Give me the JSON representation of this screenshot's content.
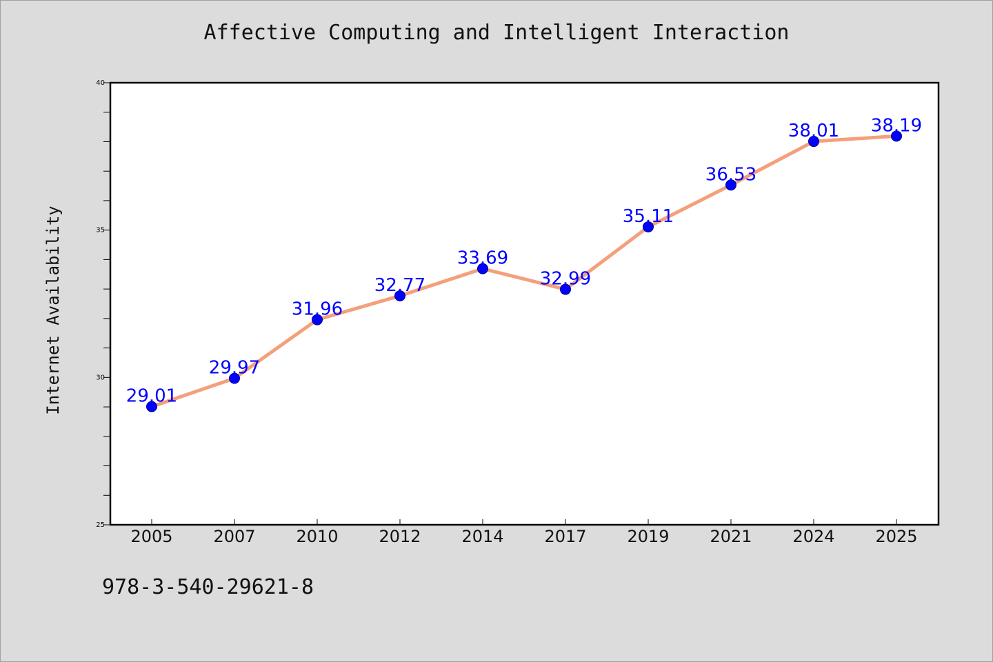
{
  "chart_data": {
    "type": "line",
    "title": "Affective Computing and Intelligent Interaction",
    "xlabel": "",
    "ylabel": "Internet Availability",
    "categories": [
      "2005",
      "2007",
      "2010",
      "2012",
      "2014",
      "2017",
      "2019",
      "2021",
      "2024",
      "2025"
    ],
    "series": [
      {
        "values": [
          29.01,
          29.97,
          31.96,
          32.77,
          33.69,
          32.99,
          35.11,
          36.53,
          38.01,
          38.19
        ],
        "labels": [
          "29.01",
          "29.97",
          "31.96",
          "32.77",
          "33.69",
          "32.99",
          "35.11",
          "36.53",
          "38.01",
          "38.19"
        ]
      }
    ],
    "ylim": [
      25,
      40
    ],
    "yticks": [
      "25",
      "30",
      "35",
      "40"
    ],
    "grid": false,
    "colors": {
      "line": "#f4a07c",
      "marker": "#0000ff",
      "label": "#0000ff",
      "background": "#dcdcdc",
      "plot": "#ffffff"
    }
  },
  "footer": {
    "isbn": "978-3-540-29621-8"
  }
}
